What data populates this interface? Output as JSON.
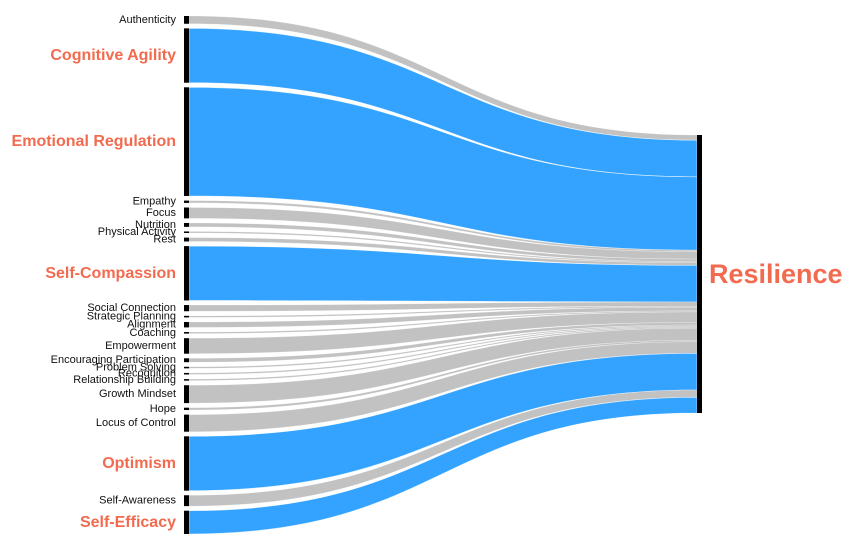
{
  "chart_data": {
    "type": "sankey",
    "target": "Resilience",
    "sources": [
      {
        "name": "Authenticity",
        "value": 1.0,
        "highlight": false
      },
      {
        "name": "Cognitive Agility",
        "value": 7.0,
        "highlight": true
      },
      {
        "name": "Emotional Regulation",
        "value": 14.0,
        "highlight": true
      },
      {
        "name": "Empathy",
        "value": 0.3,
        "highlight": false
      },
      {
        "name": "Focus",
        "value": 1.4,
        "highlight": false
      },
      {
        "name": "Nutrition",
        "value": 0.5,
        "highlight": false
      },
      {
        "name": "Physical Activity",
        "value": 0.2,
        "highlight": false
      },
      {
        "name": "Rest",
        "value": 0.5,
        "highlight": false
      },
      {
        "name": "Self-Compassion",
        "value": 7.0,
        "highlight": true
      },
      {
        "name": "Social Connection",
        "value": 0.8,
        "highlight": false
      },
      {
        "name": "Strategic Planning",
        "value": 0.2,
        "highlight": false
      },
      {
        "name": "Alignment",
        "value": 0.7,
        "highlight": false
      },
      {
        "name": "Coaching",
        "value": 0.2,
        "highlight": false
      },
      {
        "name": "Empowerment",
        "value": 2.0,
        "highlight": false
      },
      {
        "name": "Encouraging Participation",
        "value": 0.5,
        "highlight": false
      },
      {
        "name": "Problem Solving",
        "value": 0.2,
        "highlight": false
      },
      {
        "name": "Recognition",
        "value": 0.2,
        "highlight": false
      },
      {
        "name": "Relationship Building",
        "value": 0.2,
        "highlight": false
      },
      {
        "name": "Growth Mindset",
        "value": 2.3,
        "highlight": false
      },
      {
        "name": "Hope",
        "value": 0.3,
        "highlight": false
      },
      {
        "name": "Locus of Control",
        "value": 2.2,
        "highlight": false
      },
      {
        "name": "Optimism",
        "value": 7.0,
        "highlight": true
      },
      {
        "name": "Self-Awareness",
        "value": 1.4,
        "highlight": false
      },
      {
        "name": "Self-Efficacy",
        "value": 3.0,
        "highlight": true
      }
    ],
    "colors": {
      "highlight_flow": "#33a3ff",
      "other_flow": "#c2c2c2",
      "node_bar": "#000000",
      "major_label": "#f26b4f",
      "target_label": "#f26b4f",
      "minor_label": "#111111"
    }
  }
}
